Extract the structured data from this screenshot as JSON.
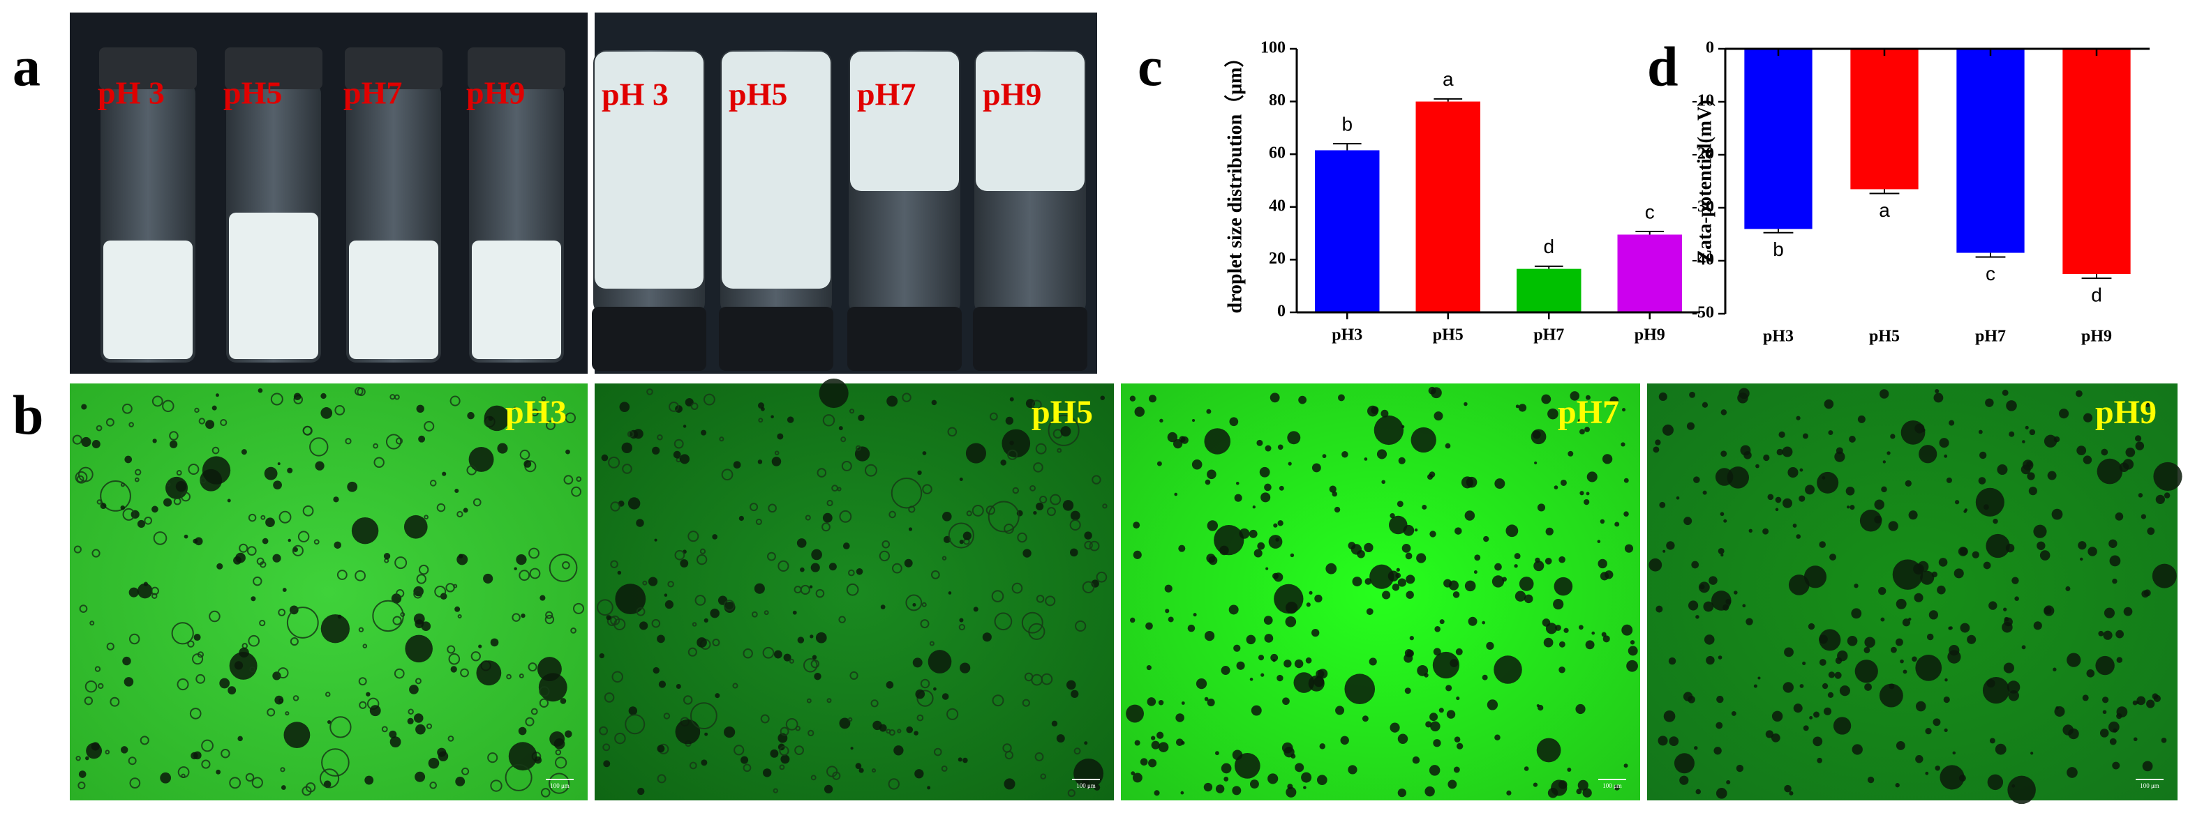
{
  "panel_labels": [
    "a",
    "b",
    "c",
    "d"
  ],
  "panel_a": {
    "left_labels": [
      "pH 3",
      "pH5",
      "pH7",
      "pH9"
    ],
    "right_labels": [
      "pH 3",
      "pH5",
      "pH7",
      "pH9"
    ]
  },
  "panel_b": {
    "labels": [
      "pH3",
      "pH5",
      "pH7",
      "pH9"
    ],
    "scale_bar": "100 μm"
  },
  "chart_data": [
    {
      "type": "bar",
      "ylabel": "droplet size distribution（μm）",
      "categories": [
        "pH3",
        "pH5",
        "pH7",
        "pH9"
      ],
      "values": [
        61.5,
        80,
        16.5,
        29.5
      ],
      "errors": [
        2.5,
        1,
        1,
        1.2
      ],
      "letters": [
        "b",
        "a",
        "d",
        "c"
      ],
      "colors": [
        "#0000ff",
        "#ff0000",
        "#00c000",
        "#cc00ee"
      ],
      "ylim": [
        0,
        100
      ],
      "yticks": [
        0,
        20,
        40,
        60,
        80,
        100
      ]
    },
    {
      "type": "bar",
      "ylabel": "Zata-potential(mV)",
      "categories": [
        "pH3",
        "pH5",
        "pH7",
        "pH9"
      ],
      "values": [
        -34,
        -26.5,
        -38.5,
        -42.5
      ],
      "errors": [
        0.7,
        0.8,
        0.8,
        0.8
      ],
      "letters": [
        "b",
        "a",
        "c",
        "d"
      ],
      "colors": [
        "#0000ff",
        "#ff0000",
        "#0000ff",
        "#ff0000"
      ],
      "ylim": [
        -50,
        0
      ],
      "yticks": [
        -50,
        -40,
        -30,
        -20,
        -10,
        0
      ]
    }
  ]
}
